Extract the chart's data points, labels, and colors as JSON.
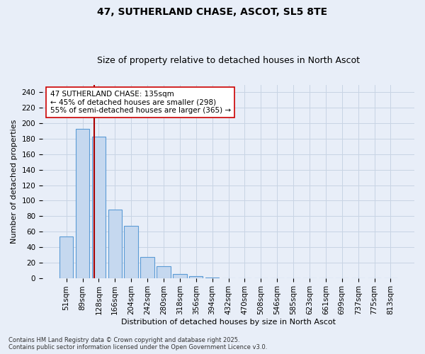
{
  "title1": "47, SUTHERLAND CHASE, ASCOT, SL5 8TE",
  "title2": "Size of property relative to detached houses in North Ascot",
  "xlabel": "Distribution of detached houses by size in North Ascot",
  "ylabel": "Number of detached properties",
  "categories": [
    "51sqm",
    "89sqm",
    "128sqm",
    "166sqm",
    "204sqm",
    "242sqm",
    "280sqm",
    "318sqm",
    "356sqm",
    "394sqm",
    "432sqm",
    "470sqm",
    "508sqm",
    "546sqm",
    "585sqm",
    "623sqm",
    "661sqm",
    "699sqm",
    "737sqm",
    "775sqm",
    "813sqm"
  ],
  "values": [
    54,
    193,
    183,
    88,
    67,
    27,
    15,
    5,
    2,
    1,
    0,
    0,
    0,
    0,
    0,
    0,
    0,
    0,
    0,
    0,
    0
  ],
  "bar_color": "#c5d8ef",
  "bar_edge_color": "#5b9bd5",
  "grid_color": "#c8d4e4",
  "vline_x": 1.72,
  "vline_color": "#aa0000",
  "annotation_text1": "47 SUTHERLAND CHASE: 135sqm",
  "annotation_text2": "← 45% of detached houses are smaller (298)",
  "annotation_text3": "55% of semi-detached houses are larger (365) →",
  "annotation_fontsize": 7.5,
  "footnote1": "Contains HM Land Registry data © Crown copyright and database right 2025.",
  "footnote2": "Contains public sector information licensed under the Open Government Licence v3.0.",
  "ylim": [
    0,
    250
  ],
  "yticks": [
    0,
    20,
    40,
    60,
    80,
    100,
    120,
    140,
    160,
    180,
    200,
    220,
    240
  ],
  "background_color": "#e8eef8",
  "title_fontsize": 10,
  "subtitle_fontsize": 9,
  "axis_fontsize": 8,
  "tick_fontsize": 7.5
}
